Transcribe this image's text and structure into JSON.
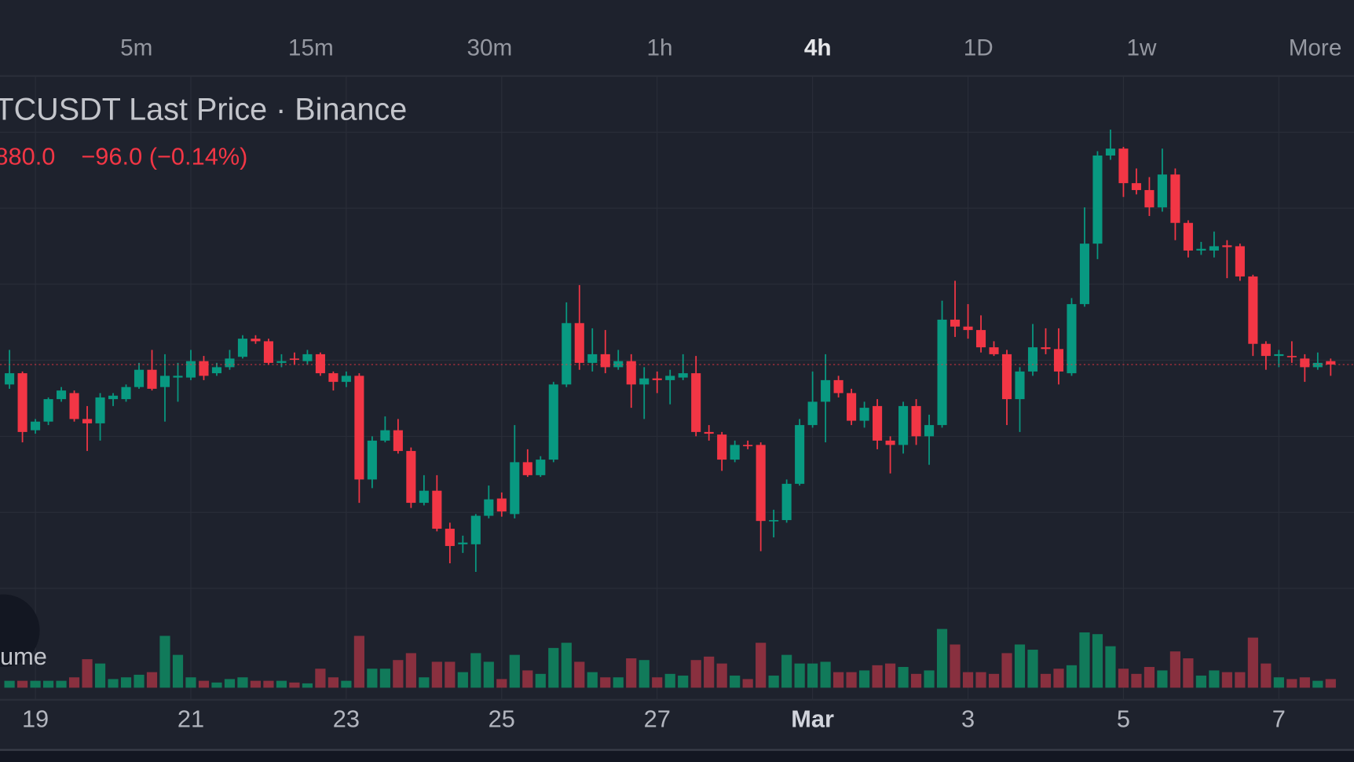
{
  "tabs": [
    "5m",
    "15m",
    "30m",
    "1h",
    "4h",
    "1D",
    "1w",
    "More"
  ],
  "active_tab": 4,
  "chart_data": [
    {
      "type": "candlestick",
      "title": "TCUSDT Last Price · Binance",
      "last_price_label": "880.0",
      "change_label": "−96.0 (−0.14%)",
      "up_color": "#089981",
      "down_color": "#f23645",
      "grid": true,
      "xlim": [
        -0.7333,
        103.8
      ],
      "ylim": [
        65950,
        72220
      ],
      "xticks": [
        {
          "value": 2,
          "label": "19"
        },
        {
          "value": 14,
          "label": "21"
        },
        {
          "value": 26,
          "label": "23"
        },
        {
          "value": 38,
          "label": "25"
        },
        {
          "value": 50,
          "label": "27"
        },
        {
          "value": 62,
          "label": "Mar"
        },
        {
          "value": 74,
          "label": "3"
        },
        {
          "value": 86,
          "label": "5"
        },
        {
          "value": 98,
          "label": "7"
        }
      ],
      "open": [
        68650,
        68780,
        68120,
        68220,
        68480,
        68550,
        68250,
        68200,
        68480,
        68480,
        68620,
        68820,
        68620,
        68730,
        68730,
        68920,
        68780,
        68850,
        68970,
        69180,
        69150,
        68900,
        68950,
        68920,
        69000,
        68780,
        68680,
        68750,
        67550,
        68000,
        68120,
        67880,
        67280,
        67420,
        66980,
        66800,
        66800,
        67130,
        67330,
        67150,
        67750,
        67600,
        67780,
        68650,
        69360,
        68900,
        69000,
        68850,
        68920,
        68650,
        68720,
        68700,
        68730,
        68780,
        68100,
        68070,
        67780,
        67950,
        67950,
        67070,
        67080,
        67500,
        68180,
        68450,
        68700,
        68550,
        68230,
        68400,
        68000,
        67950,
        68400,
        68050,
        68180,
        69400,
        69320,
        69280,
        69080,
        69000,
        68480,
        68800,
        69080,
        69060,
        68780,
        69580,
        70280,
        71300,
        71380,
        70980,
        70900,
        70700,
        71080,
        70520,
        70200,
        70200,
        70260,
        70250,
        69900,
        69120,
        68980,
        68980,
        68950,
        68850,
        68920
      ],
      "high": [
        69050,
        68800,
        68250,
        68500,
        68620,
        68580,
        68400,
        68550,
        68550,
        68650,
        68900,
        69050,
        69000,
        68900,
        69050,
        68980,
        68900,
        69050,
        69220,
        69220,
        69180,
        69000,
        69020,
        69050,
        69020,
        68800,
        68800,
        68780,
        68050,
        68280,
        68250,
        67920,
        67600,
        67600,
        67050,
        66900,
        67150,
        67480,
        67400,
        68180,
        67900,
        67820,
        68680,
        69600,
        69800,
        69300,
        69280,
        69050,
        69000,
        68850,
        68800,
        68820,
        69000,
        68980,
        68180,
        68100,
        68000,
        68000,
        67980,
        67200,
        67550,
        68250,
        68800,
        69000,
        68750,
        68600,
        68450,
        68480,
        68050,
        68450,
        68480,
        68300,
        69620,
        69850,
        69580,
        69450,
        69150,
        69050,
        68850,
        69350,
        69300,
        69300,
        69650,
        70700,
        71350,
        71600,
        71400,
        71150,
        71050,
        71380,
        71150,
        70550,
        70300,
        70420,
        70320,
        70280,
        69920,
        69150,
        69050,
        69150,
        69000,
        69020,
        68950
      ],
      "low": [
        68600,
        67980,
        68080,
        68180,
        68450,
        68220,
        67880,
        68000,
        68400,
        68450,
        68600,
        68580,
        68220,
        68450,
        68700,
        68700,
        68750,
        68820,
        68950,
        69120,
        68880,
        68850,
        68880,
        68880,
        68750,
        68580,
        68620,
        67280,
        67450,
        67980,
        67850,
        67220,
        67250,
        66950,
        66580,
        66700,
        66480,
        67100,
        67120,
        67100,
        67580,
        67580,
        67750,
        68620,
        68820,
        68800,
        68780,
        68820,
        68380,
        68250,
        68550,
        68420,
        68700,
        68050,
        68000,
        67650,
        67750,
        67900,
        66720,
        66880,
        67050,
        67480,
        68150,
        67980,
        68500,
        68180,
        68150,
        67900,
        67620,
        67850,
        67950,
        67720,
        68150,
        69200,
        69180,
        69020,
        68980,
        68180,
        68100,
        68750,
        69000,
        68650,
        68750,
        69550,
        70100,
        71250,
        70820,
        70850,
        70600,
        70650,
        70320,
        70120,
        70150,
        70120,
        69880,
        69850,
        68980,
        68820,
        68850,
        68900,
        68680,
        68820,
        68750
      ],
      "close": [
        68780,
        68100,
        68220,
        68480,
        68580,
        68250,
        68200,
        68500,
        68520,
        68620,
        68820,
        68600,
        68750,
        68750,
        68920,
        68750,
        68850,
        68950,
        69180,
        69150,
        68900,
        68920,
        68940,
        69000,
        68780,
        68680,
        68750,
        67550,
        68000,
        68120,
        67880,
        67280,
        67420,
        66980,
        66780,
        66820,
        67130,
        67320,
        67180,
        67750,
        67600,
        67780,
        68650,
        69360,
        68900,
        69000,
        68850,
        68920,
        68650,
        68720,
        68700,
        68750,
        68780,
        68100,
        68080,
        67780,
        67950,
        67940,
        67070,
        67080,
        67500,
        68180,
        68450,
        68700,
        68550,
        68230,
        68380,
        68000,
        67950,
        68400,
        68050,
        68180,
        69400,
        69320,
        69280,
        69080,
        69000,
        68480,
        68800,
        69080,
        69060,
        68800,
        69580,
        70280,
        71300,
        71380,
        70980,
        70900,
        70700,
        71080,
        70520,
        70200,
        70220,
        70250,
        70240,
        69900,
        69120,
        68980,
        69000,
        68970,
        68850,
        68900,
        68880
      ]
    },
    {
      "type": "bar",
      "title": "ume",
      "up_color": "#117a5a",
      "down_color": "#89303f",
      "xlim": [
        -0.7333,
        103.8
      ],
      "ylim": [
        0,
        70
      ],
      "values": [
        8,
        8,
        8,
        8,
        8,
        12,
        33,
        28,
        10,
        12,
        15,
        18,
        60,
        38,
        12,
        8,
        6,
        10,
        12,
        8,
        8,
        8,
        6,
        5,
        22,
        12,
        8,
        60,
        22,
        22,
        32,
        40,
        12,
        30,
        30,
        18,
        40,
        30,
        10,
        38,
        20,
        16,
        46,
        52,
        30,
        18,
        12,
        12,
        34,
        32,
        12,
        16,
        14,
        32,
        36,
        28,
        14,
        10,
        52,
        14,
        38,
        28,
        28,
        30,
        18,
        18,
        20,
        26,
        28,
        24,
        16,
        20,
        68,
        50,
        18,
        18,
        16,
        40,
        50,
        44,
        16,
        22,
        26,
        64,
        62,
        48,
        22,
        16,
        24,
        20,
        42,
        34,
        14,
        20,
        18,
        18,
        58,
        28,
        12,
        10,
        12,
        8,
        10
      ]
    }
  ]
}
